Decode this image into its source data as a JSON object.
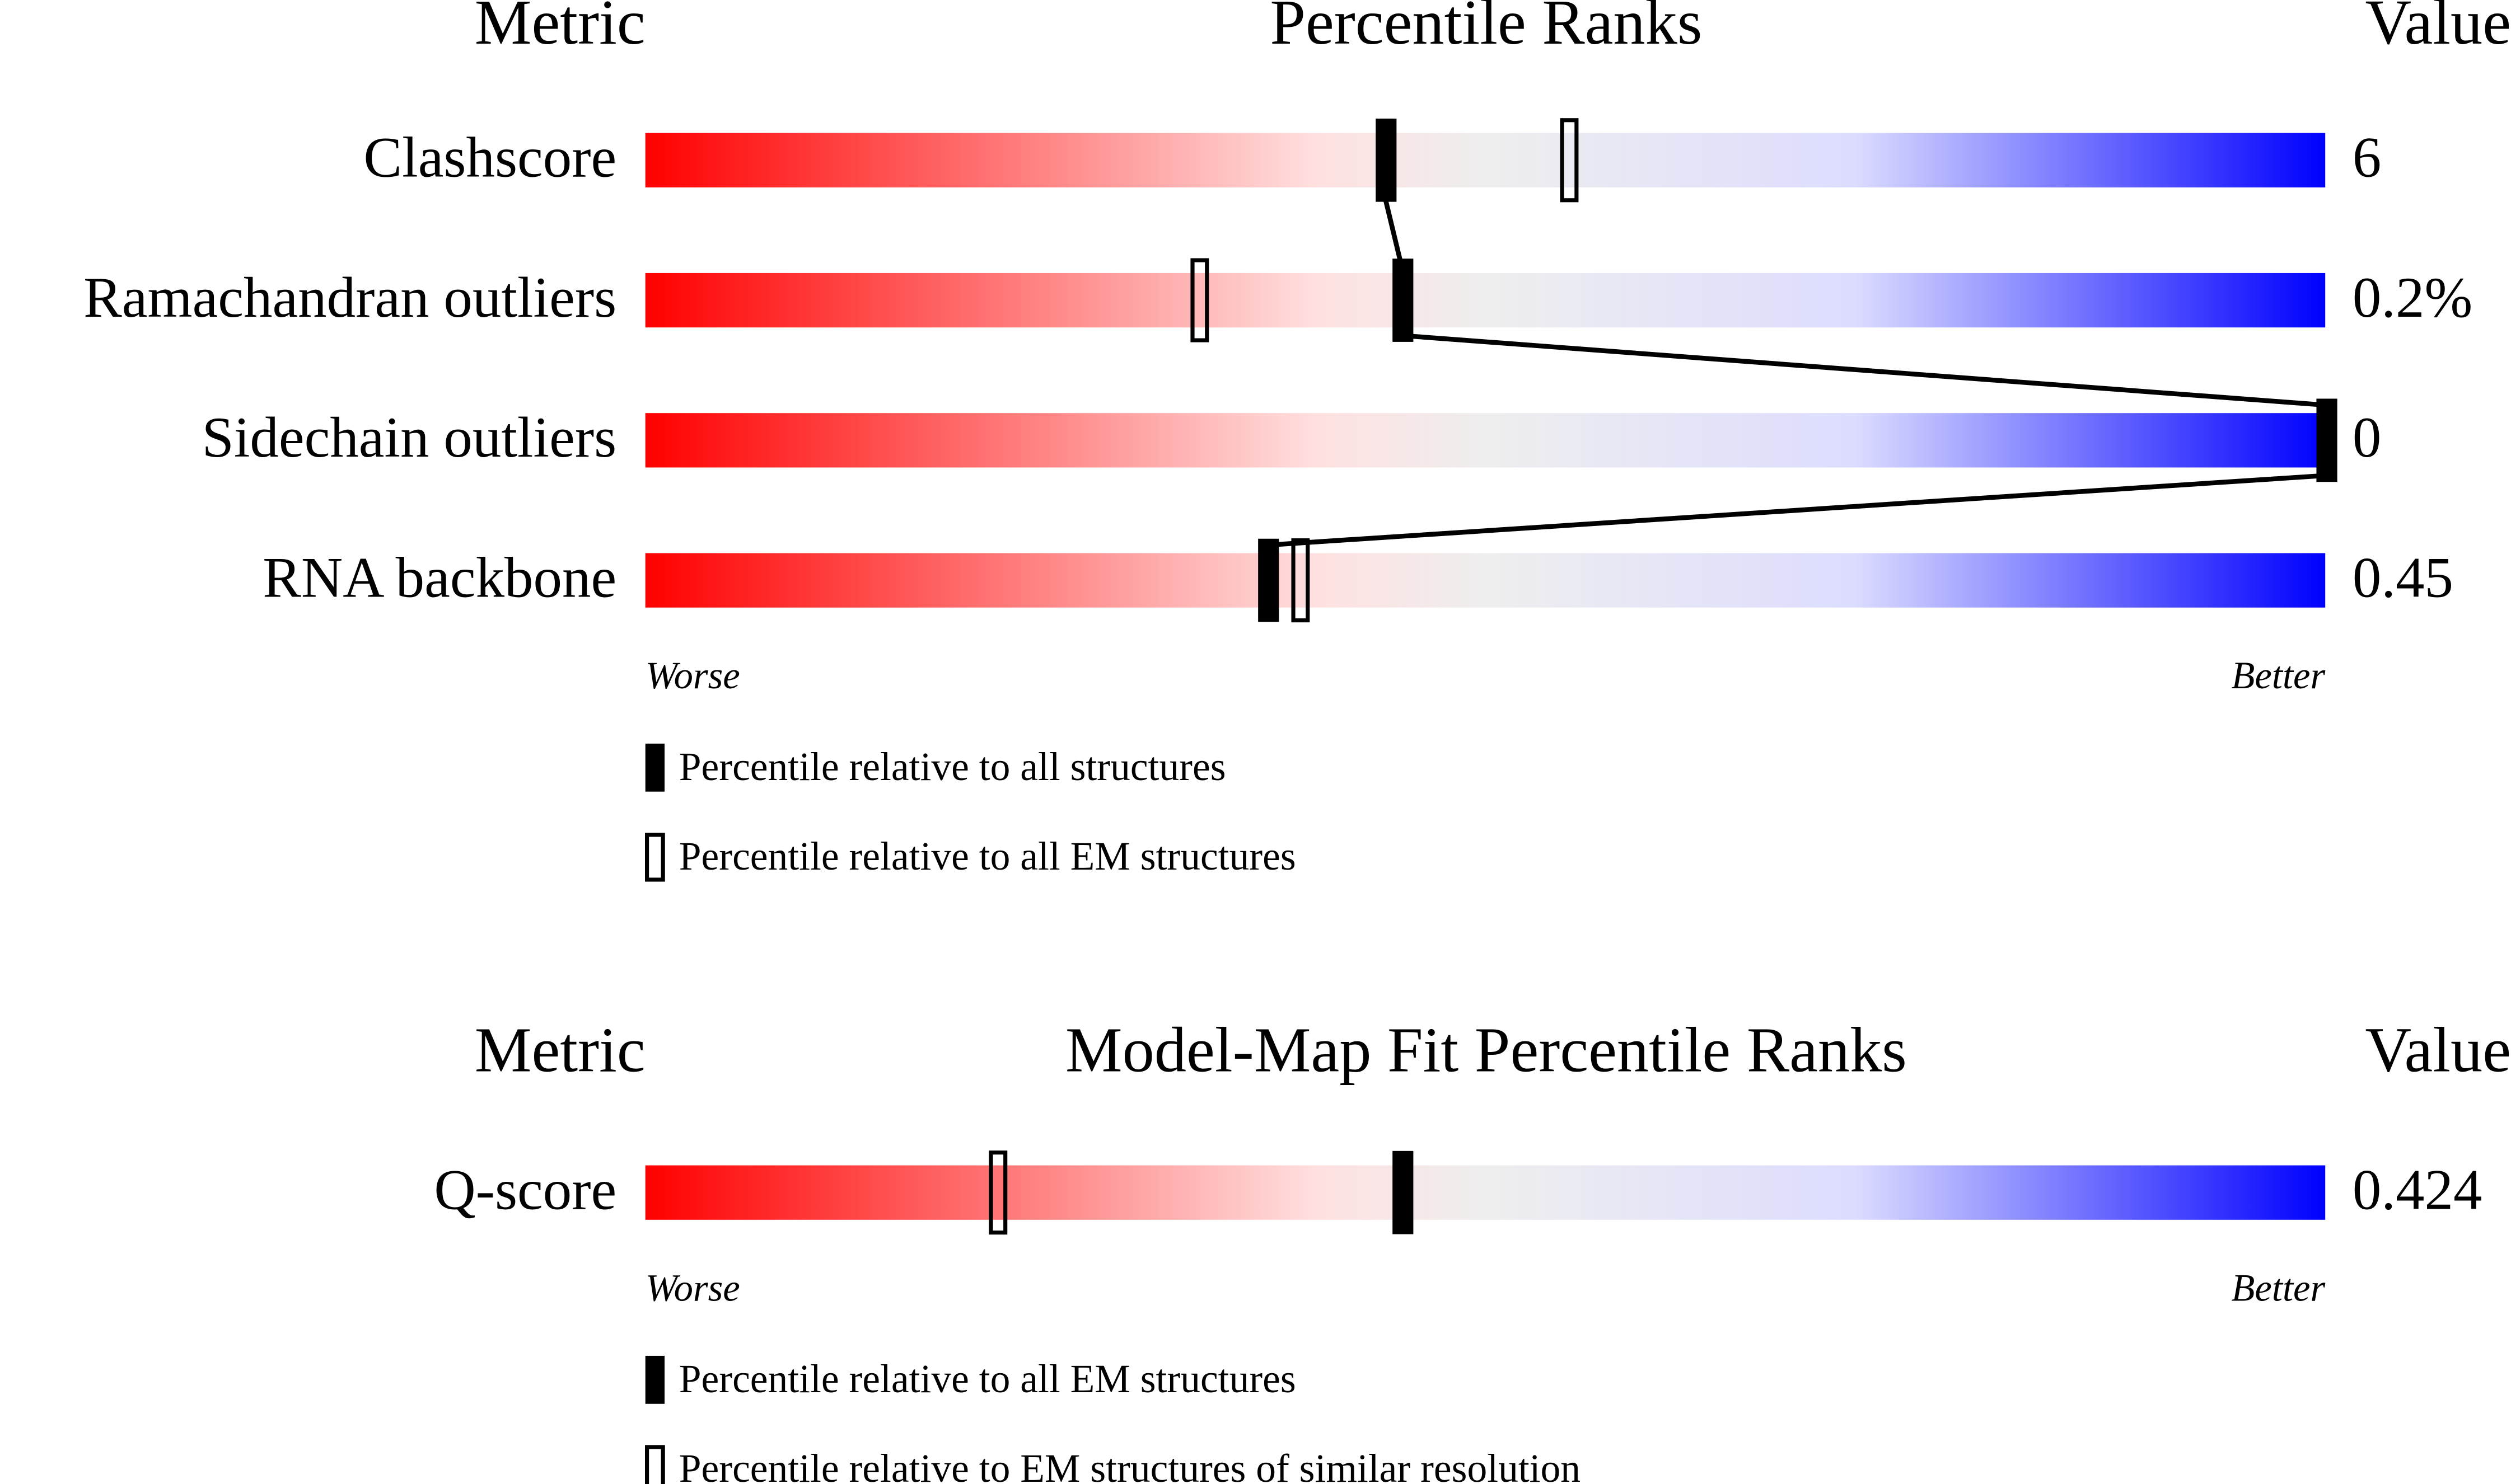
{
  "panels": [
    {
      "headers": {
        "metric": "Metric",
        "title": "Percentile Ranks",
        "value": "Value"
      },
      "rows": [
        {
          "metric": "Clashscore",
          "value": "6",
          "all": 44,
          "em": 55
        },
        {
          "metric": "Ramachandran outliers",
          "value": "0.2%",
          "all": 45,
          "em": 33
        },
        {
          "metric": "Sidechain outliers",
          "value": "0",
          "all": 100
        },
        {
          "metric": "RNA backbone",
          "value": "0.45",
          "all": 37,
          "em": 39
        }
      ],
      "worse": "Worse",
      "better": "Better",
      "legend": {
        "all": "Percentile relative to all structures",
        "em": "Percentile relative to all EM structures"
      }
    },
    {
      "headers": {
        "metric": "Metric",
        "title": "Model-Map Fit Percentile Ranks",
        "value": "Value"
      },
      "rows": [
        {
          "metric": "Q-score",
          "value": "0.424",
          "all": 45,
          "em": 21
        }
      ],
      "worse": "Worse",
      "better": "Better",
      "legend": {
        "all": "Percentile relative to all EM structures",
        "em": "Percentile relative to EM structures of similar resolution"
      }
    }
  ]
}
